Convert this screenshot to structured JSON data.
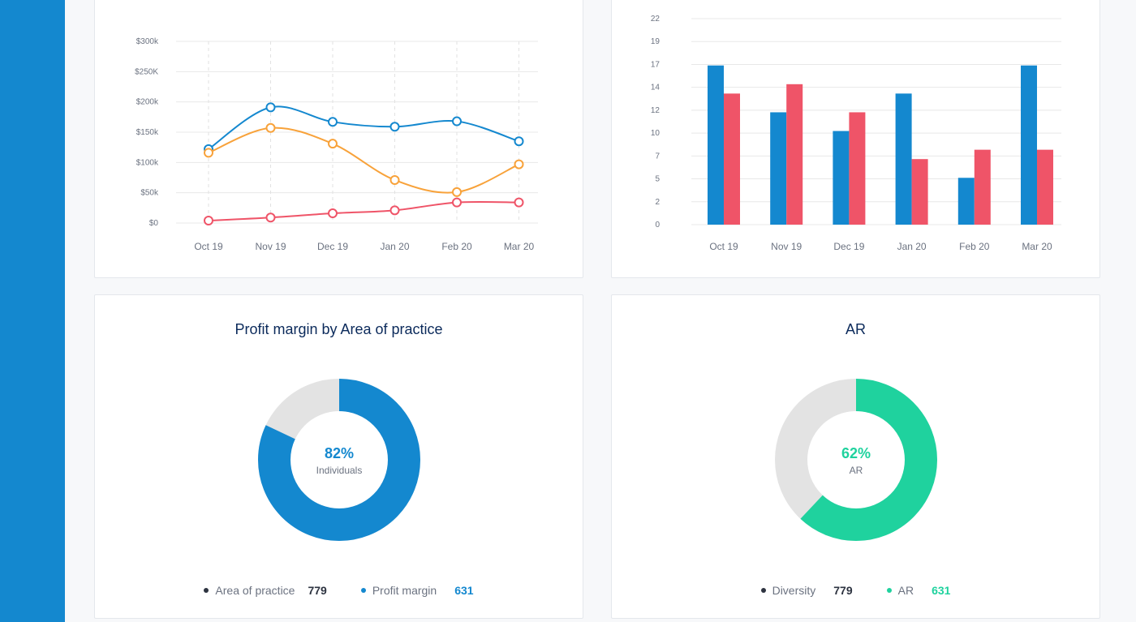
{
  "colors": {
    "blue": "#1488cf",
    "orange": "#f8a23a",
    "red": "#ef5468",
    "teal": "#1fd29e",
    "gray_track": "#e3e3e3",
    "dark": "#2d3340"
  },
  "chart_data": [
    {
      "type": "line",
      "categories": [
        "Oct 19",
        "Nov 19",
        "Dec 19",
        "Jan 20",
        "Feb 20",
        "Mar 20"
      ],
      "ytick_labels": [
        "$0",
        "$50k",
        "$100k",
        "$150k",
        "$200k",
        "$250K",
        "$300k"
      ],
      "ylim": [
        0,
        300000
      ],
      "grid": true,
      "series": [
        {
          "color": "#1488cf",
          "values": [
            122000,
            191000,
            167000,
            159000,
            168000,
            135000
          ]
        },
        {
          "color": "#f8a23a",
          "values": [
            116000,
            157000,
            131000,
            71000,
            51000,
            97000
          ]
        },
        {
          "color": "#ef5468",
          "values": [
            4000,
            9000,
            16000,
            21000,
            34000,
            34000
          ]
        }
      ]
    },
    {
      "type": "bar",
      "categories": [
        "Oct 19",
        "Nov 19",
        "Dec 19",
        "Jan 20",
        "Feb 20",
        "Mar 20"
      ],
      "ytick_labels": [
        "0",
        "2",
        "5",
        "7",
        "10",
        "12",
        "14",
        "17",
        "19",
        "22"
      ],
      "ylim": [
        0,
        22
      ],
      "grid": true,
      "series": [
        {
          "color": "#1488cf",
          "values": [
            17,
            12,
            10,
            14,
            5,
            17
          ]
        },
        {
          "color": "#ef5468",
          "values": [
            14,
            15,
            12,
            7,
            8,
            8
          ]
        }
      ]
    },
    {
      "type": "pie",
      "title": "Profit margin by  Area of practice",
      "center_value": "82%",
      "center_label": "Individuals",
      "fraction": 0.82,
      "color": "#1488cf",
      "legend": [
        {
          "label": "Area of practice",
          "value": "779",
          "color": "#2d3340"
        },
        {
          "label": "Profit margin",
          "value": "631",
          "color": "#1488cf"
        }
      ]
    },
    {
      "type": "pie",
      "title": "AR",
      "center_value": "62%",
      "center_label": "AR",
      "fraction": 0.62,
      "color": "#1fd29e",
      "legend": [
        {
          "label": "Diversity",
          "value": "779",
          "color": "#2d3340"
        },
        {
          "label": "AR",
          "value": "631",
          "color": "#1fd29e"
        }
      ]
    }
  ]
}
